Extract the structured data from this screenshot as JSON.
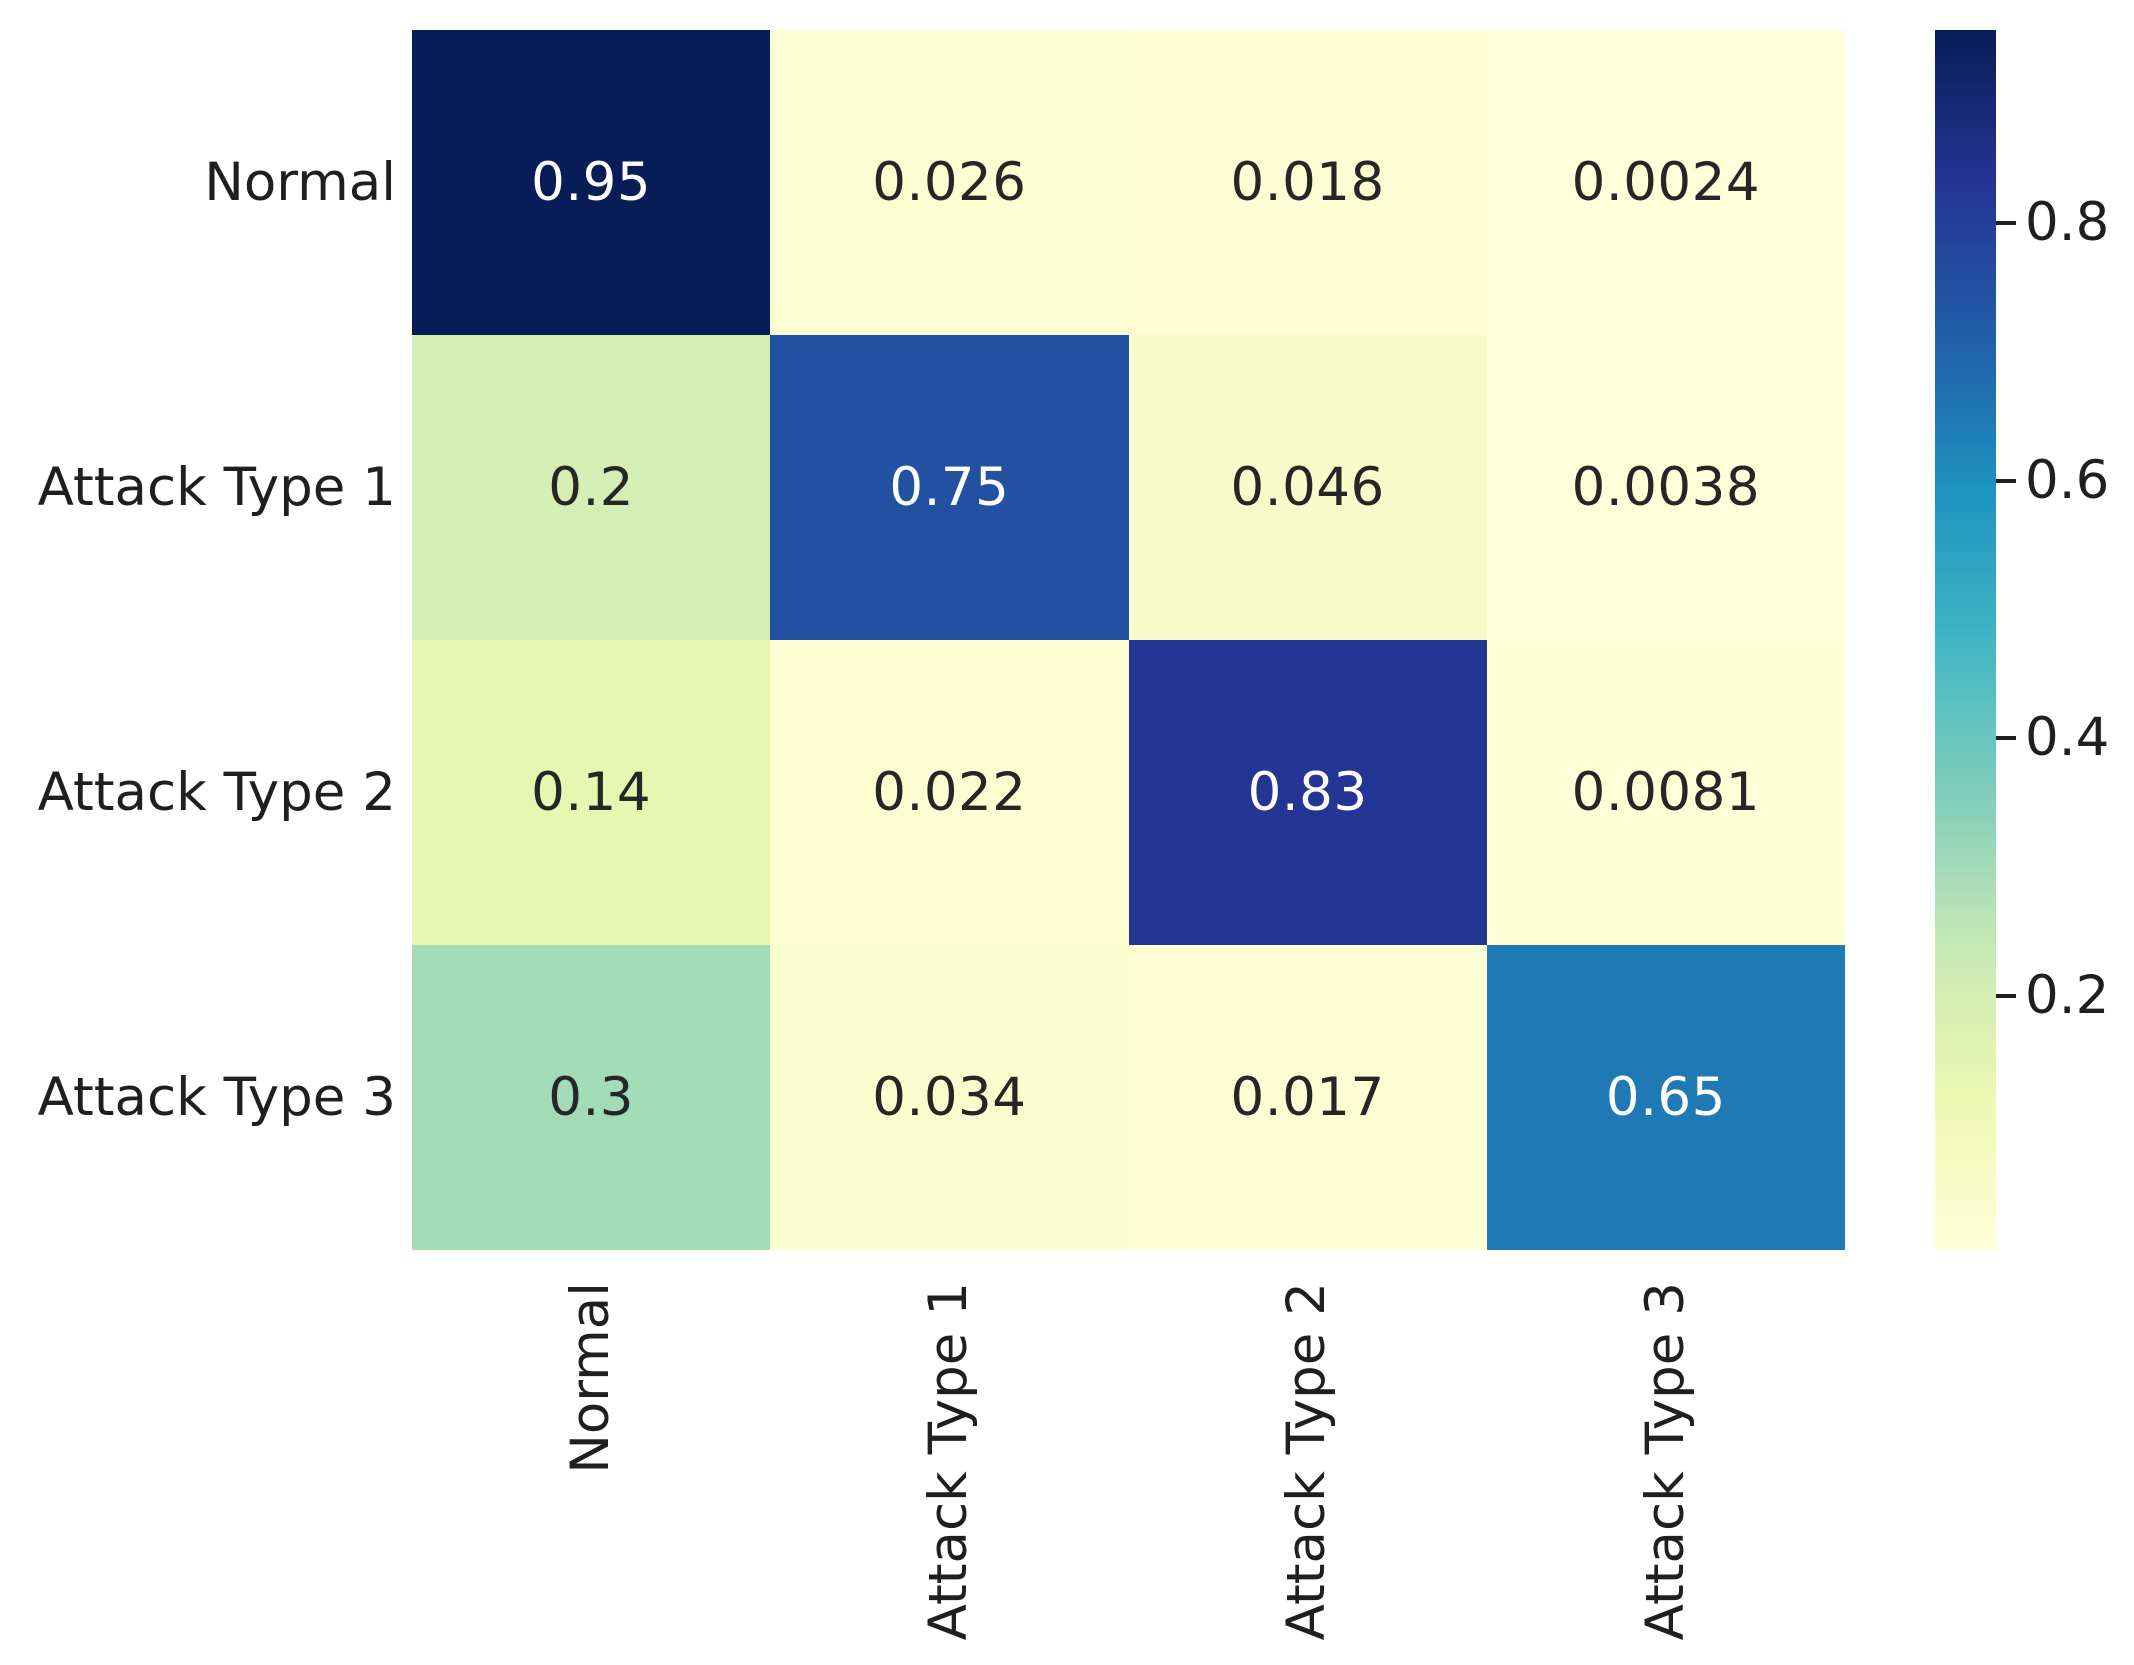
{
  "figure": {
    "description": "Confusion matrix heatmap",
    "background_color": "#ffffff"
  },
  "chart_data": {
    "type": "heatmap",
    "title": "",
    "xlabel": "",
    "ylabel": "",
    "row_labels": [
      "Normal",
      "Attack Type 1",
      "Attack Type 2",
      "Attack Type 3"
    ],
    "col_labels": [
      "Normal",
      "Attack Type 1",
      "Attack Type 2",
      "Attack Type 3"
    ],
    "values": [
      [
        0.95,
        0.026,
        0.018,
        0.0024
      ],
      [
        0.2,
        0.75,
        0.046,
        0.0038
      ],
      [
        0.14,
        0.022,
        0.83,
        0.0081
      ],
      [
        0.3,
        0.034,
        0.017,
        0.65
      ]
    ],
    "cell_text": [
      [
        "0.95",
        "0.026",
        "0.018",
        "0.0024"
      ],
      [
        "0.2",
        "0.75",
        "0.046",
        "0.0038"
      ],
      [
        "0.14",
        "0.022",
        "0.83",
        "0.0081"
      ],
      [
        "0.3",
        "0.034",
        "0.017",
        "0.65"
      ]
    ],
    "colormap": "YlGnBu",
    "colormap_stops": [
      "#ffffd9",
      "#edf8b1",
      "#c7e9b4",
      "#7fcdbb",
      "#41b6c4",
      "#1d91c0",
      "#225ea8",
      "#253494",
      "#081d58"
    ],
    "vmin": 0.0024,
    "vmax": 0.95,
    "colorbar": {
      "position": "right",
      "tick_labels": [
        "0.8",
        "0.6",
        "0.4",
        "0.2"
      ],
      "tick_values": [
        0.8,
        0.6,
        0.4,
        0.2
      ]
    },
    "annotation_color_dark": "#262626",
    "annotation_color_light": "#ffffff",
    "axis_text_color": "#1f1f1f",
    "tick_mark_color": "#1f1f1f",
    "grid_lines": false,
    "legend": null
  }
}
